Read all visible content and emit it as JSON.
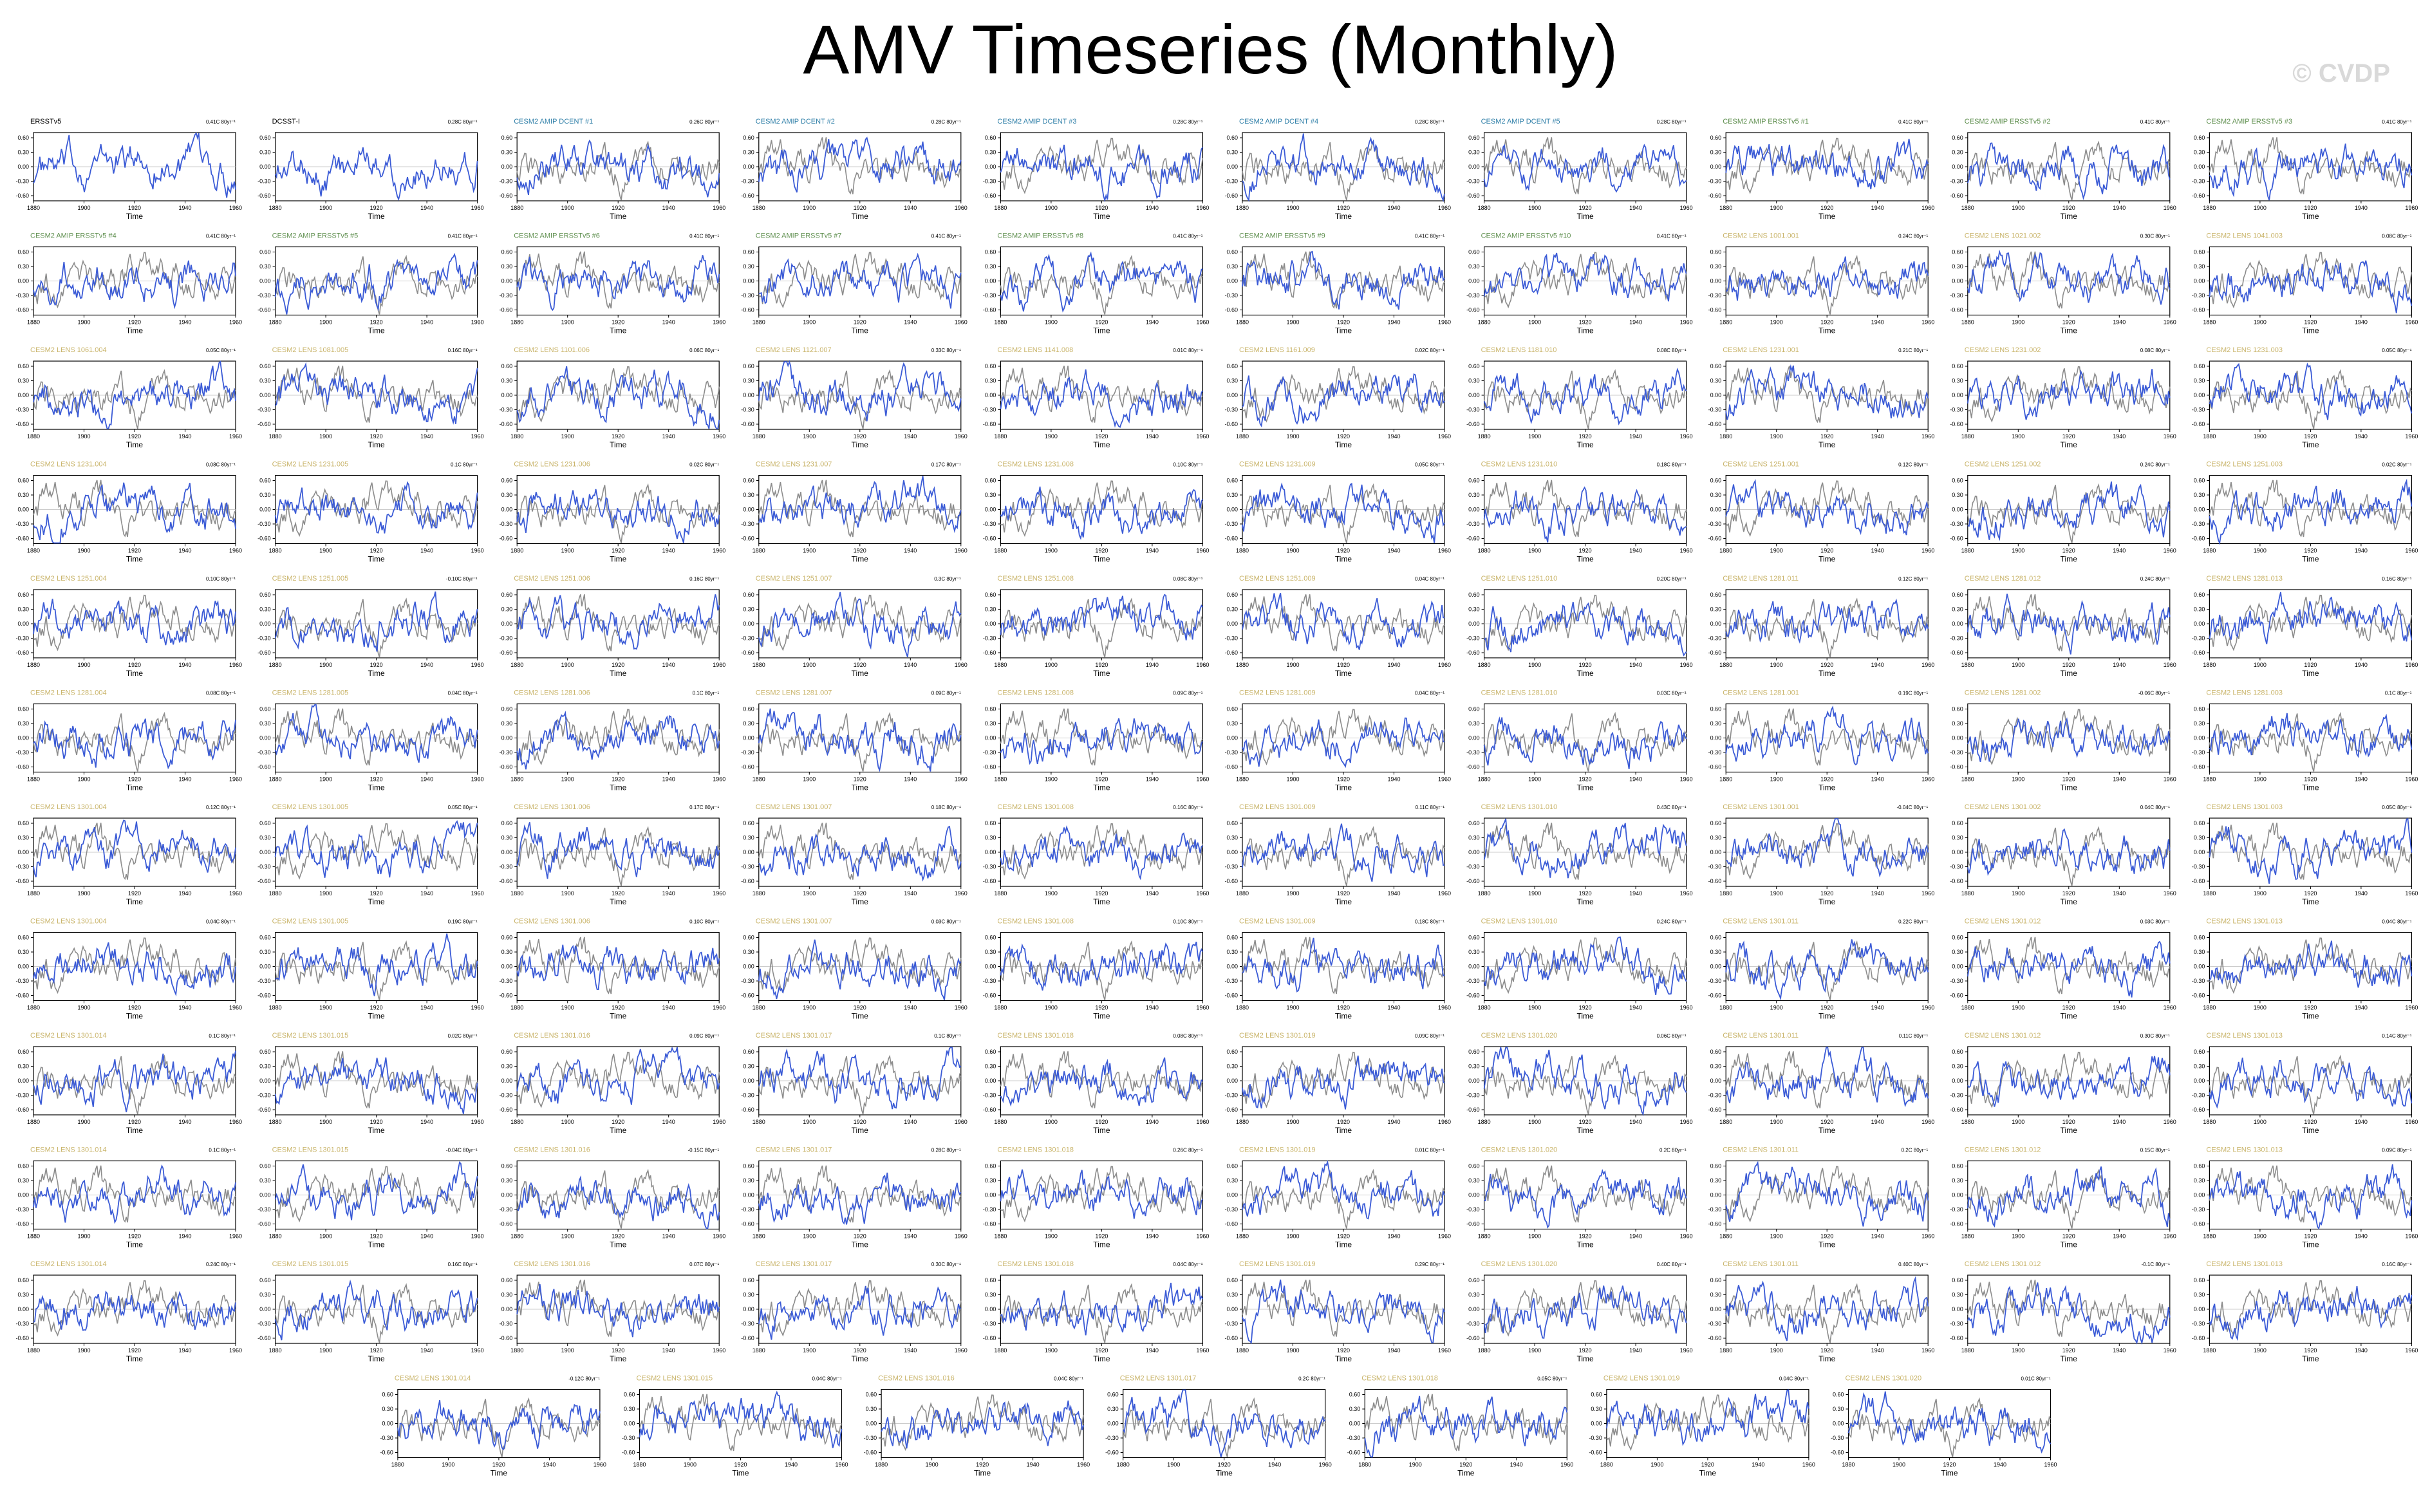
{
  "title": "AMV Timeseries (Monthly)",
  "watermark": "© CVDP",
  "colors": {
    "model": "#3b5bd6",
    "obs": "#8c8c8c",
    "obs_title": "#000000",
    "dcent_title": "#2f7fa8",
    "ersst_title": "#5f8f4f",
    "lens_title": "#c9b46a"
  },
  "chart_data": {
    "type": "line",
    "xlabel": "Time",
    "x_ticks": [
      "1880",
      "1900",
      "1920",
      "1940",
      "1960"
    ],
    "panels": [
      {
        "label": "ERSSTv5",
        "trend": "0.41C 80yr⁻¹",
        "kind": "obs"
      },
      {
        "label": "DCSST-I",
        "trend": "0.28C 80yr⁻¹",
        "kind": "obs"
      },
      {
        "label": "CESM2 AMIP DCENT #1",
        "trend": "0.26C 80yr⁻¹",
        "kind": "dcent"
      },
      {
        "label": "CESM2 AMIP DCENT #2",
        "trend": "0.28C 80yr⁻¹",
        "kind": "dcent"
      },
      {
        "label": "CESM2 AMIP DCENT #3",
        "trend": "0.28C 80yr⁻¹",
        "kind": "dcent"
      },
      {
        "label": "CESM2 AMIP DCENT #4",
        "trend": "0.28C 80yr⁻¹",
        "kind": "dcent"
      },
      {
        "label": "CESM2 AMIP DCENT #5",
        "trend": "0.28C 80yr⁻¹",
        "kind": "dcent"
      },
      {
        "label": "CESM2 AMIP ERSSTv5 #1",
        "trend": "0.41C 80yr⁻¹",
        "kind": "ersst"
      },
      {
        "label": "CESM2 AMIP ERSSTv5 #2",
        "trend": "0.41C 80yr⁻¹",
        "kind": "ersst"
      },
      {
        "label": "CESM2 AMIP ERSSTv5 #3",
        "trend": "0.41C 80yr⁻¹",
        "kind": "ersst"
      },
      {
        "label": "CESM2 AMIP ERSSTv5 #4",
        "trend": "0.41C 80yr⁻¹",
        "kind": "ersst"
      },
      {
        "label": "CESM2 AMIP ERSSTv5 #5",
        "trend": "0.41C 80yr⁻¹",
        "kind": "ersst"
      },
      {
        "label": "CESM2 AMIP ERSSTv5 #6",
        "trend": "0.41C 80yr⁻¹",
        "kind": "ersst"
      },
      {
        "label": "CESM2 AMIP ERSSTv5 #7",
        "trend": "0.41C 80yr⁻¹",
        "kind": "ersst"
      },
      {
        "label": "CESM2 AMIP ERSSTv5 #8",
        "trend": "0.41C 80yr⁻¹",
        "kind": "ersst"
      },
      {
        "label": "CESM2 AMIP ERSSTv5 #9",
        "trend": "0.41C 80yr⁻¹",
        "kind": "ersst"
      },
      {
        "label": "CESM2 AMIP ERSSTv5 #10",
        "trend": "0.41C 80yr⁻¹",
        "kind": "ersst"
      },
      {
        "label": "CESM2 LENS 1001.001",
        "trend": "0.24C 80yr⁻¹",
        "kind": "lens"
      },
      {
        "label": "CESM2 LENS 1021.002",
        "trend": "0.30C 80yr⁻¹",
        "kind": "lens"
      },
      {
        "label": "CESM2 LENS 1041.003",
        "trend": "0.08C 80yr⁻¹",
        "kind": "lens"
      },
      {
        "label": "CESM2 LENS 1061.004",
        "trend": "0.05C 80yr⁻¹",
        "kind": "lens"
      },
      {
        "label": "CESM2 LENS 1081.005",
        "trend": "0.16C 80yr⁻¹",
        "kind": "lens"
      },
      {
        "label": "CESM2 LENS 1101.006",
        "trend": "0.06C 80yr⁻¹",
        "kind": "lens"
      },
      {
        "label": "CESM2 LENS 1121.007",
        "trend": "0.33C 80yr⁻¹",
        "kind": "lens"
      },
      {
        "label": "CESM2 LENS 1141.008",
        "trend": "0.01C 80yr⁻¹",
        "kind": "lens"
      },
      {
        "label": "CESM2 LENS 1161.009",
        "trend": "0.02C 80yr⁻¹",
        "kind": "lens"
      },
      {
        "label": "CESM2 LENS 1181.010",
        "trend": "0.08C 80yr⁻¹",
        "kind": "lens"
      },
      {
        "label": "CESM2 LENS 1231.001",
        "trend": "0.21C 80yr⁻¹",
        "kind": "lens"
      },
      {
        "label": "CESM2 LENS 1231.002",
        "trend": "0.08C 80yr⁻¹",
        "kind": "lens"
      },
      {
        "label": "CESM2 LENS 1231.003",
        "trend": "0.05C 80yr⁻¹",
        "kind": "lens"
      },
      {
        "label": "CESM2 LENS 1231.004",
        "trend": "0.08C 80yr⁻¹",
        "kind": "lens"
      },
      {
        "label": "CESM2 LENS 1231.005",
        "trend": "0.1C 80yr⁻¹",
        "kind": "lens"
      },
      {
        "label": "CESM2 LENS 1231.006",
        "trend": "0.02C 80yr⁻¹",
        "kind": "lens"
      },
      {
        "label": "CESM2 LENS 1231.007",
        "trend": "0.17C 80yr⁻¹",
        "kind": "lens"
      },
      {
        "label": "CESM2 LENS 1231.008",
        "trend": "0.10C 80yr⁻¹",
        "kind": "lens"
      },
      {
        "label": "CESM2 LENS 1231.009",
        "trend": "0.05C 80yr⁻¹",
        "kind": "lens"
      },
      {
        "label": "CESM2 LENS 1231.010",
        "trend": "0.18C 80yr⁻¹",
        "kind": "lens"
      },
      {
        "label": "CESM2 LENS 1251.001",
        "trend": "0.12C 80yr⁻¹",
        "kind": "lens"
      },
      {
        "label": "CESM2 LENS 1251.002",
        "trend": "0.24C 80yr⁻¹",
        "kind": "lens"
      },
      {
        "label": "CESM2 LENS 1251.003",
        "trend": "0.02C 80yr⁻¹",
        "kind": "lens"
      },
      {
        "label": "CESM2 LENS 1251.004",
        "trend": "0.10C 80yr⁻¹",
        "kind": "lens"
      },
      {
        "label": "CESM2 LENS 1251.005",
        "trend": "-0.10C 80yr⁻¹",
        "kind": "lens"
      },
      {
        "label": "CESM2 LENS 1251.006",
        "trend": "0.16C 80yr⁻¹",
        "kind": "lens"
      },
      {
        "label": "CESM2 LENS 1251.007",
        "trend": "0.3C 80yr⁻¹",
        "kind": "lens"
      },
      {
        "label": "CESM2 LENS 1251.008",
        "trend": "0.08C 80yr⁻¹",
        "kind": "lens"
      },
      {
        "label": "CESM2 LENS 1251.009",
        "trend": "0.04C 80yr⁻¹",
        "kind": "lens"
      },
      {
        "label": "CESM2 LENS 1251.010",
        "trend": "0.20C 80yr⁻¹",
        "kind": "lens"
      },
      {
        "label": "CESM2 LENS 1281.011",
        "trend": "0.12C 80yr⁻¹",
        "kind": "lens"
      },
      {
        "label": "CESM2 LENS 1281.012",
        "trend": "0.24C 80yr⁻¹",
        "kind": "lens"
      },
      {
        "label": "CESM2 LENS 1281.013",
        "trend": "0.16C 80yr⁻¹",
        "kind": "lens"
      },
      {
        "label": "CESM2 LENS 1281.004",
        "trend": "0.08C 80yr⁻¹",
        "kind": "lens"
      },
      {
        "label": "CESM2 LENS 1281.005",
        "trend": "0.04C 80yr⁻¹",
        "kind": "lens"
      },
      {
        "label": "CESM2 LENS 1281.006",
        "trend": "0.1C 80yr⁻¹",
        "kind": "lens"
      },
      {
        "label": "CESM2 LENS 1281.007",
        "trend": "0.09C 80yr⁻¹",
        "kind": "lens"
      },
      {
        "label": "CESM2 LENS 1281.008",
        "trend": "0.09C 80yr⁻¹",
        "kind": "lens"
      },
      {
        "label": "CESM2 LENS 1281.009",
        "trend": "0.04C 80yr⁻¹",
        "kind": "lens"
      },
      {
        "label": "CESM2 LENS 1281.010",
        "trend": "0.03C 80yr⁻¹",
        "kind": "lens"
      },
      {
        "label": "CESM2 LENS 1281.001",
        "trend": "0.19C 80yr⁻¹",
        "kind": "lens"
      },
      {
        "label": "CESM2 LENS 1281.002",
        "trend": "-0.06C 80yr⁻¹",
        "kind": "lens"
      },
      {
        "label": "CESM2 LENS 1281.003",
        "trend": "0.1C 80yr⁻¹",
        "kind": "lens"
      },
      {
        "label": "CESM2 LENS 1301.004",
        "trend": "0.12C 80yr⁻¹",
        "kind": "lens"
      },
      {
        "label": "CESM2 LENS 1301.005",
        "trend": "0.05C 80yr⁻¹",
        "kind": "lens"
      },
      {
        "label": "CESM2 LENS 1301.006",
        "trend": "0.17C 80yr⁻¹",
        "kind": "lens"
      },
      {
        "label": "CESM2 LENS 1301.007",
        "trend": "0.18C 80yr⁻¹",
        "kind": "lens"
      },
      {
        "label": "CESM2 LENS 1301.008",
        "trend": "0.16C 80yr⁻¹",
        "kind": "lens"
      },
      {
        "label": "CESM2 LENS 1301.009",
        "trend": "0.11C 80yr⁻¹",
        "kind": "lens"
      },
      {
        "label": "CESM2 LENS 1301.010",
        "trend": "0.43C 80yr⁻¹",
        "kind": "lens"
      },
      {
        "label": "CESM2 LENS 1301.001",
        "trend": "-0.04C 80yr⁻¹",
        "kind": "lens"
      },
      {
        "label": "CESM2 LENS 1301.002",
        "trend": "0.04C 80yr⁻¹",
        "kind": "lens"
      },
      {
        "label": "CESM2 LENS 1301.003",
        "trend": "0.05C 80yr⁻¹",
        "kind": "lens"
      },
      {
        "label": "CESM2 LENS 1301.004",
        "trend": "0.04C 80yr⁻¹",
        "kind": "lens"
      },
      {
        "label": "CESM2 LENS 1301.005",
        "trend": "0.19C 80yr⁻¹",
        "kind": "lens"
      },
      {
        "label": "CESM2 LENS 1301.006",
        "trend": "0.10C 80yr⁻¹",
        "kind": "lens"
      },
      {
        "label": "CESM2 LENS 1301.007",
        "trend": "0.03C 80yr⁻¹",
        "kind": "lens"
      },
      {
        "label": "CESM2 LENS 1301.008",
        "trend": "0.10C 80yr⁻¹",
        "kind": "lens"
      },
      {
        "label": "CESM2 LENS 1301.009",
        "trend": "0.18C 80yr⁻¹",
        "kind": "lens"
      },
      {
        "label": "CESM2 LENS 1301.010",
        "trend": "0.24C 80yr⁻¹",
        "kind": "lens"
      },
      {
        "label": "CESM2 LENS 1301.011",
        "trend": "0.22C 80yr⁻¹",
        "kind": "lens"
      },
      {
        "label": "CESM2 LENS 1301.012",
        "trend": "0.03C 80yr⁻¹",
        "kind": "lens"
      },
      {
        "label": "CESM2 LENS 1301.013",
        "trend": "0.04C 80yr⁻¹",
        "kind": "lens"
      },
      {
        "label": "CESM2 LENS 1301.014",
        "trend": "0.1C 80yr⁻¹",
        "kind": "lens"
      },
      {
        "label": "CESM2 LENS 1301.015",
        "trend": "0.02C 80yr⁻¹",
        "kind": "lens"
      },
      {
        "label": "CESM2 LENS 1301.016",
        "trend": "0.09C 80yr⁻¹",
        "kind": "lens"
      },
      {
        "label": "CESM2 LENS 1301.017",
        "trend": "0.1C 80yr⁻¹",
        "kind": "lens"
      },
      {
        "label": "CESM2 LENS 1301.018",
        "trend": "0.08C 80yr⁻¹",
        "kind": "lens"
      },
      {
        "label": "CESM2 LENS 1301.019",
        "trend": "0.09C 80yr⁻¹",
        "kind": "lens"
      },
      {
        "label": "CESM2 LENS 1301.020",
        "trend": "0.06C 80yr⁻¹",
        "kind": "lens"
      },
      {
        "label": "CESM2 LENS 1301.011",
        "trend": "0.11C 80yr⁻¹",
        "kind": "lens"
      },
      {
        "label": "CESM2 LENS 1301.012",
        "trend": "0.30C 80yr⁻¹",
        "kind": "lens"
      },
      {
        "label": "CESM2 LENS 1301.013",
        "trend": "0.14C 80yr⁻¹",
        "kind": "lens"
      },
      {
        "label": "CESM2 LENS 1301.014",
        "trend": "0.1C 80yr⁻¹",
        "kind": "lens"
      },
      {
        "label": "CESM2 LENS 1301.015",
        "trend": "-0.04C 80yr⁻¹",
        "kind": "lens"
      },
      {
        "label": "CESM2 LENS 1301.016",
        "trend": "-0.15C 80yr⁻¹",
        "kind": "lens"
      },
      {
        "label": "CESM2 LENS 1301.017",
        "trend": "0.28C 80yr⁻¹",
        "kind": "lens"
      },
      {
        "label": "CESM2 LENS 1301.018",
        "trend": "0.26C 80yr⁻¹",
        "kind": "lens"
      },
      {
        "label": "CESM2 LENS 1301.019",
        "trend": "0.01C 80yr⁻¹",
        "kind": "lens"
      },
      {
        "label": "CESM2 LENS 1301.020",
        "trend": "0.2C 80yr⁻¹",
        "kind": "lens"
      },
      {
        "label": "CESM2 LENS 1301.011",
        "trend": "0.2C 80yr⁻¹",
        "kind": "lens"
      },
      {
        "label": "CESM2 LENS 1301.012",
        "trend": "0.15C 80yr⁻¹",
        "kind": "lens"
      },
      {
        "label": "CESM2 LENS 1301.013",
        "trend": "0.09C 80yr⁻¹",
        "kind": "lens"
      },
      {
        "label": "CESM2 LENS 1301.014",
        "trend": "0.24C 80yr⁻¹",
        "kind": "lens"
      },
      {
        "label": "CESM2 LENS 1301.015",
        "trend": "0.16C 80yr⁻¹",
        "kind": "lens"
      },
      {
        "label": "CESM2 LENS 1301.016",
        "trend": "0.07C 80yr⁻¹",
        "kind": "lens"
      },
      {
        "label": "CESM2 LENS 1301.017",
        "trend": "0.30C 80yr⁻¹",
        "kind": "lens"
      },
      {
        "label": "CESM2 LENS 1301.018",
        "trend": "0.04C 80yr⁻¹",
        "kind": "lens"
      },
      {
        "label": "CESM2 LENS 1301.019",
        "trend": "0.29C 80yr⁻¹",
        "kind": "lens"
      },
      {
        "label": "CESM2 LENS 1301.020",
        "trend": "0.40C 80yr⁻¹",
        "kind": "lens"
      },
      {
        "label": "CESM2 LENS 1301.011",
        "trend": "0.40C 80yr⁻¹",
        "kind": "lens"
      },
      {
        "label": "CESM2 LENS 1301.012",
        "trend": "-0.1C 80yr⁻¹",
        "kind": "lens"
      },
      {
        "label": "CESM2 LENS 1301.013",
        "trend": "0.16C 80yr⁻¹",
        "kind": "lens"
      },
      {
        "label": "CESM2 LENS 1301.014",
        "trend": "-0.12C 80yr⁻¹",
        "kind": "lens"
      },
      {
        "label": "CESM2 LENS 1301.015",
        "trend": "0.04C 80yr⁻¹",
        "kind": "lens"
      },
      {
        "label": "CESM2 LENS 1301.016",
        "trend": "0.04C 80yr⁻¹",
        "kind": "lens"
      },
      {
        "label": "CESM2 LENS 1301.017",
        "trend": "0.2C 80yr⁻¹",
        "kind": "lens"
      },
      {
        "label": "CESM2 LENS 1301.018",
        "trend": "0.05C 80yr⁻¹",
        "kind": "lens"
      },
      {
        "label": "CESM2 LENS 1301.019",
        "trend": "0.04C 80yr⁻¹",
        "kind": "lens"
      },
      {
        "label": "CESM2 LENS 1301.020",
        "trend": "0.01C 80yr⁻¹",
        "kind": "lens"
      }
    ]
  }
}
